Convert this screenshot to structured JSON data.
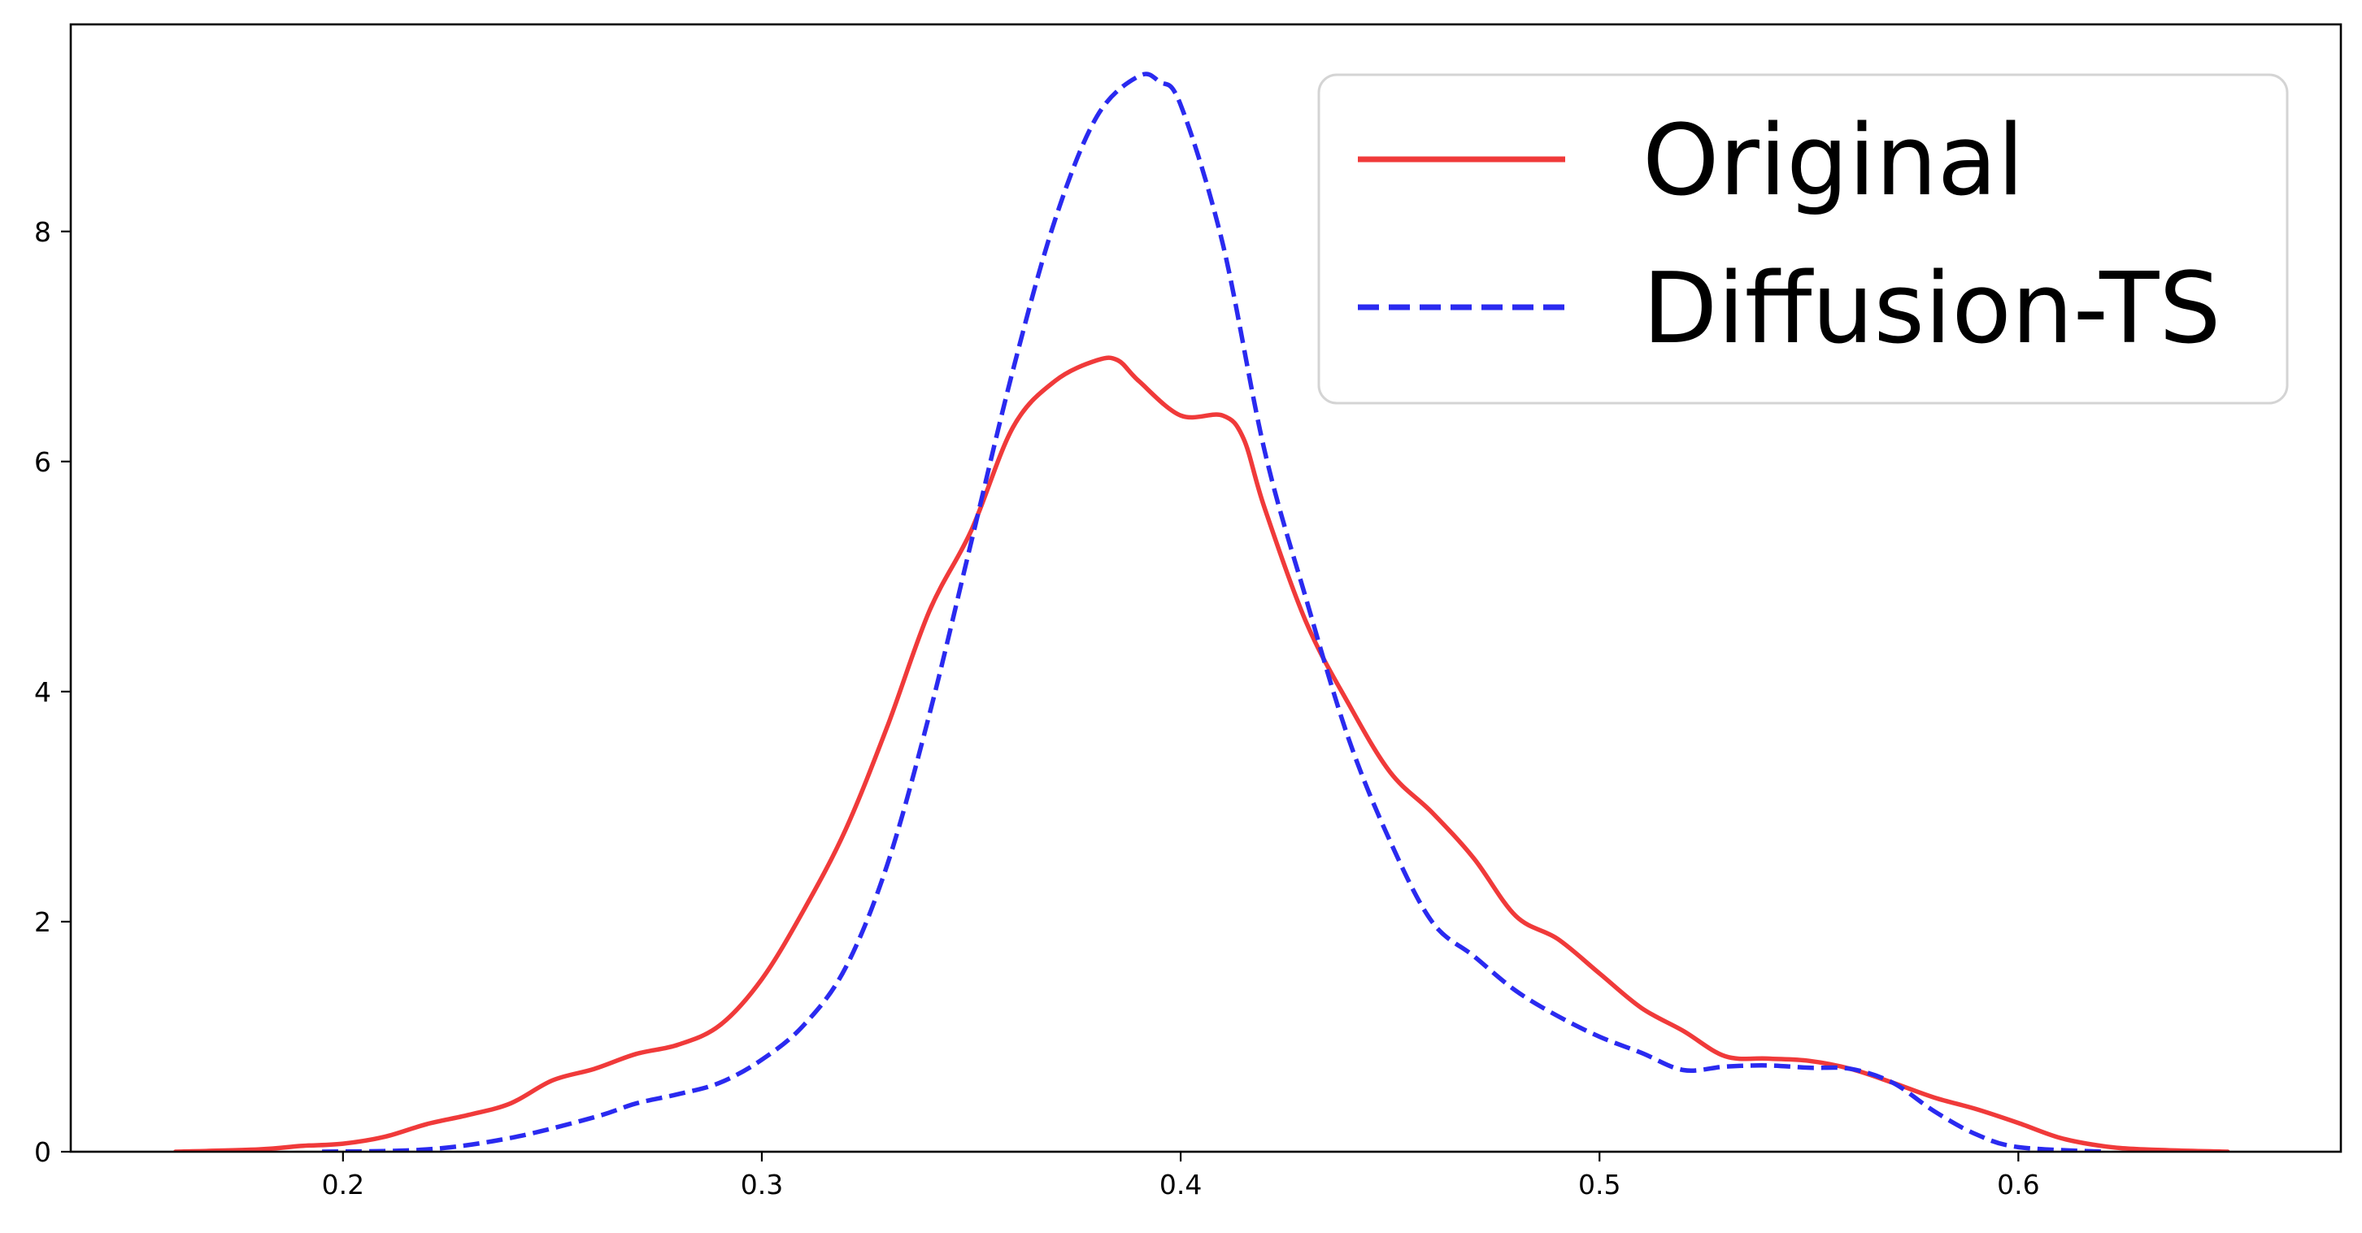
{
  "chart_data": {
    "type": "line",
    "title": "",
    "xlabel": "",
    "ylabel": "",
    "xlim": [
      0.135,
      0.677
    ],
    "ylim": [
      0,
      9.8
    ],
    "grid": false,
    "legend_position": "top-right",
    "x_ticks": [
      0.2,
      0.3,
      0.4,
      0.5,
      0.6
    ],
    "x_tick_labels": [
      "0.2",
      "0.3",
      "0.4",
      "0.5",
      "0.6"
    ],
    "y_ticks": [
      0,
      2,
      4,
      6,
      8
    ],
    "y_tick_labels": [
      "0",
      "2",
      "4",
      "6",
      "8"
    ],
    "series": [
      {
        "name": "Original",
        "color": "#f03a3a",
        "style": "solid",
        "x": [
          0.16,
          0.18,
          0.19,
          0.2,
          0.21,
          0.22,
          0.23,
          0.24,
          0.25,
          0.26,
          0.27,
          0.28,
          0.29,
          0.3,
          0.31,
          0.32,
          0.33,
          0.34,
          0.35,
          0.36,
          0.37,
          0.38,
          0.385,
          0.39,
          0.4,
          0.41,
          0.415,
          0.42,
          0.43,
          0.44,
          0.45,
          0.46,
          0.47,
          0.48,
          0.49,
          0.5,
          0.51,
          0.52,
          0.53,
          0.54,
          0.55,
          0.56,
          0.57,
          0.58,
          0.59,
          0.6,
          0.61,
          0.62,
          0.63,
          0.65
        ],
        "y": [
          0.0,
          0.02,
          0.05,
          0.07,
          0.13,
          0.24,
          0.32,
          0.42,
          0.62,
          0.72,
          0.85,
          0.93,
          1.1,
          1.5,
          2.1,
          2.8,
          3.7,
          4.7,
          5.4,
          6.3,
          6.7,
          6.88,
          6.88,
          6.7,
          6.4,
          6.4,
          6.2,
          5.6,
          4.6,
          3.9,
          3.3,
          2.95,
          2.55,
          2.05,
          1.85,
          1.55,
          1.25,
          1.05,
          0.83,
          0.81,
          0.79,
          0.72,
          0.6,
          0.47,
          0.37,
          0.25,
          0.12,
          0.05,
          0.02,
          0.0
        ]
      },
      {
        "name": "Diffusion-TS",
        "color": "#2a2af0",
        "style": "dashed",
        "x": [
          0.195,
          0.22,
          0.24,
          0.26,
          0.27,
          0.28,
          0.29,
          0.3,
          0.31,
          0.32,
          0.33,
          0.34,
          0.35,
          0.36,
          0.37,
          0.38,
          0.39,
          0.395,
          0.4,
          0.41,
          0.42,
          0.43,
          0.44,
          0.45,
          0.46,
          0.47,
          0.48,
          0.49,
          0.5,
          0.51,
          0.52,
          0.53,
          0.54,
          0.55,
          0.56,
          0.57,
          0.58,
          0.59,
          0.6,
          0.62
        ],
        "y": [
          0.0,
          0.02,
          0.12,
          0.3,
          0.42,
          0.5,
          0.6,
          0.8,
          1.1,
          1.6,
          2.5,
          3.8,
          5.3,
          6.8,
          8.1,
          9.0,
          9.35,
          9.3,
          9.1,
          7.9,
          6.1,
          4.8,
          3.6,
          2.7,
          2.0,
          1.7,
          1.4,
          1.18,
          1.0,
          0.86,
          0.71,
          0.74,
          0.75,
          0.73,
          0.72,
          0.6,
          0.35,
          0.15,
          0.04,
          0.0
        ]
      }
    ]
  }
}
